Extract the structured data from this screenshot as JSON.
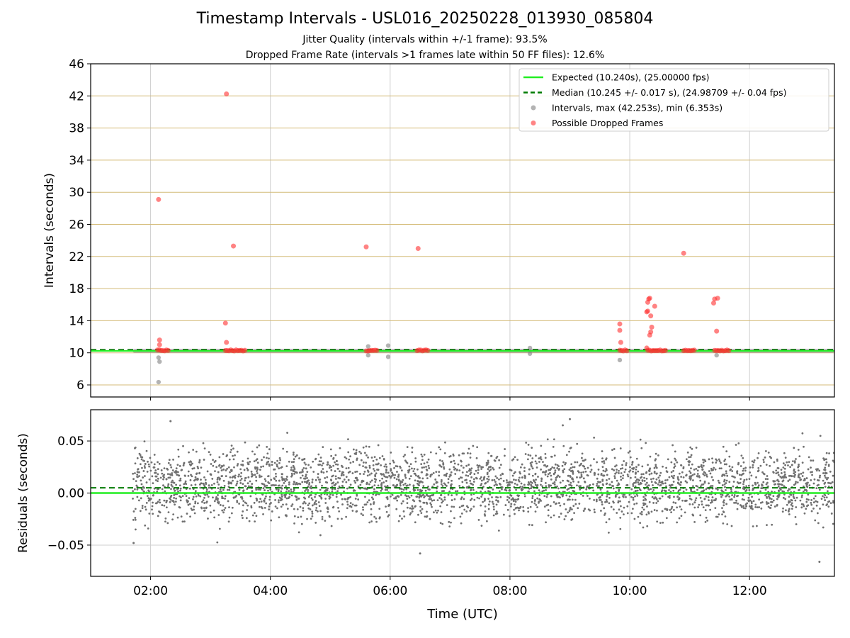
{
  "figure": {
    "title": "Timestamp Intervals - USL016_20250228_013930_085804",
    "subtitle1": "Jitter Quality (intervals within +/-1 frame): 93.5%",
    "subtitle2": "Dropped Frame Rate (intervals >1 frames late within 50 FF files): 12.6%"
  },
  "chart_data": [
    {
      "type": "scatter",
      "panel": "intervals",
      "xlabel": "",
      "ylabel": "Intervals (seconds)",
      "xlim": [
        "01:00",
        "13:25"
      ],
      "ylim": [
        4.5,
        46
      ],
      "yticks": [
        6,
        10,
        14,
        18,
        22,
        26,
        30,
        34,
        38,
        42,
        46
      ],
      "xticks": [
        "02:00",
        "04:00",
        "06:00",
        "08:00",
        "10:00",
        "12:00"
      ],
      "x_gridlines": true,
      "y_gridline_color": "#d4bb78",
      "legend_position": "top-right",
      "expected_line": {
        "label": "Expected (10.240s), (25.00000 fps)",
        "value": 10.24,
        "color": "#22ee22"
      },
      "median_line": {
        "label": "Median (10.245 +/- 0.017 s), (24.98709 +/- 0.04 fps)",
        "value": 10.245,
        "color": "#007a00"
      },
      "intervals": {
        "label": "Intervals, max (42.253s), min (6.353s)",
        "color": "#808080",
        "band": {
          "x_start": "01:42",
          "x_end": "13:25",
          "y_low": 10.0,
          "y_high": 10.5
        },
        "points": [
          {
            "t": "02:08",
            "y": 6.35
          },
          {
            "t": "02:09",
            "y": 8.9
          },
          {
            "t": "02:08",
            "y": 9.4
          },
          {
            "t": "05:38",
            "y": 10.8
          },
          {
            "t": "05:38",
            "y": 9.7
          },
          {
            "t": "05:58",
            "y": 10.9
          },
          {
            "t": "05:58",
            "y": 9.5
          },
          {
            "t": "08:20",
            "y": 10.6
          },
          {
            "t": "08:20",
            "y": 9.9
          },
          {
            "t": "09:50",
            "y": 9.1
          },
          {
            "t": "11:27",
            "y": 9.7
          }
        ]
      },
      "dropped_frames": {
        "label": "Possible Dropped Frames",
        "color": "#ff3030",
        "points": [
          {
            "t": "02:08",
            "y": 29.1
          },
          {
            "t": "02:09",
            "y": 11.6
          },
          {
            "t": "02:09",
            "y": 11.0
          },
          {
            "t": "03:16",
            "y": 42.25
          },
          {
            "t": "03:15",
            "y": 13.7
          },
          {
            "t": "03:16",
            "y": 11.3
          },
          {
            "t": "03:23",
            "y": 23.3
          },
          {
            "t": "05:36",
            "y": 23.2
          },
          {
            "t": "06:28",
            "y": 23.0
          },
          {
            "t": "09:50",
            "y": 13.6
          },
          {
            "t": "09:50",
            "y": 12.8
          },
          {
            "t": "09:51",
            "y": 11.3
          },
          {
            "t": "10:17",
            "y": 15.1
          },
          {
            "t": "10:18",
            "y": 15.2
          },
          {
            "t": "10:18",
            "y": 16.3
          },
          {
            "t": "10:19",
            "y": 16.7
          },
          {
            "t": "10:20",
            "y": 16.8
          },
          {
            "t": "10:21",
            "y": 14.6
          },
          {
            "t": "10:22",
            "y": 13.2
          },
          {
            "t": "10:21",
            "y": 12.6
          },
          {
            "t": "10:20",
            "y": 12.2
          },
          {
            "t": "10:25",
            "y": 15.8
          },
          {
            "t": "10:17",
            "y": 10.6
          },
          {
            "t": "10:54",
            "y": 22.4
          },
          {
            "t": "11:25",
            "y": 16.7
          },
          {
            "t": "11:24",
            "y": 16.2
          },
          {
            "t": "11:28",
            "y": 16.8
          },
          {
            "t": "11:27",
            "y": 12.7
          }
        ],
        "clusters": [
          {
            "x_start": "02:07",
            "x_end": "02:19",
            "y": 10.3
          },
          {
            "x_start": "03:15",
            "x_end": "03:35",
            "y": 10.3
          },
          {
            "x_start": "05:36",
            "x_end": "05:48",
            "y": 10.3
          },
          {
            "x_start": "06:27",
            "x_end": "06:38",
            "y": 10.3
          },
          {
            "x_start": "09:50",
            "x_end": "09:58",
            "y": 10.3
          },
          {
            "x_start": "10:18",
            "x_end": "10:37",
            "y": 10.3
          },
          {
            "x_start": "10:54",
            "x_end": "11:05",
            "y": 10.3
          },
          {
            "x_start": "11:25",
            "x_end": "11:40",
            "y": 10.3
          }
        ]
      }
    },
    {
      "type": "scatter",
      "panel": "residuals",
      "xlabel": "Time (UTC)",
      "ylabel": "Residuals (seconds)",
      "xlim": [
        "01:00",
        "13:25"
      ],
      "ylim": [
        -0.08,
        0.08
      ],
      "yticks": [
        0.05,
        0.0,
        -0.05
      ],
      "ytick_labels": [
        "0.05",
        "0.00",
        "−0.05"
      ],
      "xticks": [
        "02:00",
        "04:00",
        "06:00",
        "08:00",
        "10:00",
        "12:00"
      ],
      "grid": true,
      "expected_line": {
        "value": 0.0,
        "color": "#22ee22"
      },
      "median_line": {
        "value": 0.005,
        "color": "#007a00"
      },
      "residuals": {
        "color": "#707070",
        "x_start": "01:42",
        "x_end": "13:25",
        "distribution": {
          "clusters": [
            0.02,
            -0.004
          ],
          "spread": 0.012,
          "range": [
            -0.066,
            0.071
          ]
        },
        "extremes": [
          {
            "t": "09:00",
            "y": 0.071
          },
          {
            "t": "13:10",
            "y": -0.066
          },
          {
            "t": "02:20",
            "y": 0.069
          },
          {
            "t": "06:30",
            "y": -0.058
          },
          {
            "t": "01:43",
            "y": -0.048
          }
        ]
      }
    }
  ]
}
